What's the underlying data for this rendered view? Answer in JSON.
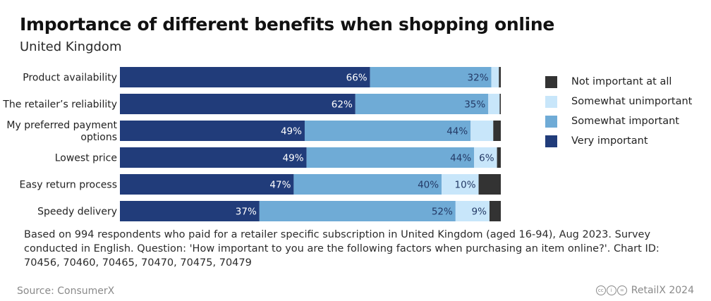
{
  "title": "Importance of different benefits when shopping online",
  "subtitle": "United Kingdom",
  "note": "Based on 994 respondents who paid for a retailer specific subscription in United Kingdom (aged 16-94), Aug 2023. Survey conducted in English. Question: 'How important to you are the following factors when purchasing an item online?'. Chart ID: 70456, 70460, 70465, 70470, 70475, 70479",
  "source": "Source: ConsumerX",
  "brand": "RetailX 2024",
  "legend": [
    {
      "label": "Not important at all",
      "color": "#333333"
    },
    {
      "label": "Somewhat unimportant",
      "color": "#c8e6fa"
    },
    {
      "label": "Somewhat important",
      "color": "#6fabd6"
    },
    {
      "label": "Very important",
      "color": "#213c7a"
    }
  ],
  "chart_data": {
    "type": "bar",
    "stacked": true,
    "orientation": "horizontal",
    "categories": [
      "Product availability",
      "The retailer's reliability",
      "My preferred payment options",
      "Lowest price",
      "Easy return process",
      "Speedy delivery"
    ],
    "category_display": [
      [
        "Product availability"
      ],
      [
        "The retailer’s reliability"
      ],
      [
        "My preferred payment",
        "options"
      ],
      [
        "Lowest price"
      ],
      [
        "Easy return process"
      ],
      [
        "Speedy delivery"
      ]
    ],
    "series": [
      {
        "name": "Very important",
        "color": "#213c7a",
        "values": [
          66,
          62,
          49,
          49,
          47,
          37
        ]
      },
      {
        "name": "Somewhat important",
        "color": "#6fabd6",
        "values": [
          32,
          35,
          44,
          44,
          40,
          52
        ]
      },
      {
        "name": "Somewhat unimportant",
        "color": "#c8e6fa",
        "values": [
          2,
          3,
          6,
          6,
          10,
          9
        ]
      },
      {
        "name": "Not important at all",
        "color": "#333333",
        "values": [
          0.5,
          0.3,
          2,
          1,
          6,
          3
        ]
      }
    ],
    "data_labels": [
      [
        "66%",
        "62%",
        "49%",
        "49%",
        "47%",
        "37%"
      ],
      [
        "32%",
        "35%",
        "44%",
        "44%",
        "40%",
        "52%"
      ],
      [
        "",
        "",
        "",
        "6%",
        "10%",
        "9%"
      ],
      [
        "",
        "",
        "",
        "",
        "",
        ""
      ]
    ]
  }
}
